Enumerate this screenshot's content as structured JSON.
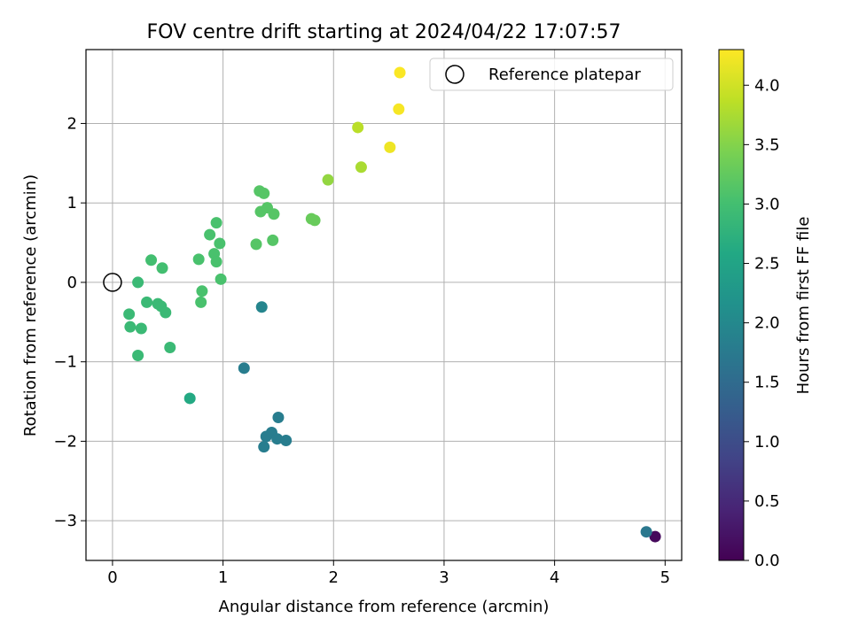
{
  "chart_data": {
    "type": "scatter",
    "title": "FOV centre drift starting at 2024/04/22 17:07:57",
    "xlabel": "Angular distance from reference (arcmin)",
    "ylabel": "Rotation from reference (arcmin)",
    "xlim": [
      -0.24,
      5.15
    ],
    "ylim": [
      -3.5,
      2.93
    ],
    "xticks": [
      0,
      1,
      2,
      3,
      4,
      5
    ],
    "xtick_labels": [
      "0",
      "1",
      "2",
      "3",
      "4",
      "5"
    ],
    "yticks": [
      -3,
      -2,
      -1,
      0,
      1,
      2
    ],
    "ytick_labels": [
      "−3",
      "−2",
      "−1",
      "0",
      "1",
      "2"
    ],
    "grid": true,
    "legend": {
      "placement": "top-right",
      "entries": [
        "Reference platepar"
      ]
    },
    "reference_point": {
      "x": 0,
      "y": 0,
      "label": "Reference platepar"
    },
    "colorbar": {
      "label": "Hours from first FF file",
      "colormap": "viridis",
      "range": [
        0.0,
        4.3
      ],
      "ticks": [
        0.0,
        0.5,
        1.0,
        1.5,
        2.0,
        2.5,
        3.0,
        3.5,
        4.0
      ],
      "tick_labels": [
        "0.0",
        "0.5",
        "1.0",
        "1.5",
        "2.0",
        "2.5",
        "3.0",
        "3.5",
        "4.0"
      ]
    },
    "points": [
      {
        "x": 4.91,
        "y": -3.2,
        "c": 0.1
      },
      {
        "x": 4.83,
        "y": -3.14,
        "c": 1.7
      },
      {
        "x": 1.35,
        "y": -0.31,
        "c": 1.95
      },
      {
        "x": 1.19,
        "y": -1.08,
        "c": 1.8
      },
      {
        "x": 1.5,
        "y": -1.7,
        "c": 1.8
      },
      {
        "x": 1.39,
        "y": -1.94,
        "c": 1.8
      },
      {
        "x": 1.44,
        "y": -1.89,
        "c": 1.8
      },
      {
        "x": 1.49,
        "y": -1.97,
        "c": 1.8
      },
      {
        "x": 1.57,
        "y": -1.99,
        "c": 1.8
      },
      {
        "x": 1.37,
        "y": -2.07,
        "c": 1.8
      },
      {
        "x": 0.7,
        "y": -1.46,
        "c": 2.6
      },
      {
        "x": 0.52,
        "y": -0.82,
        "c": 2.9
      },
      {
        "x": 0.23,
        "y": -0.92,
        "c": 2.9
      },
      {
        "x": 0.15,
        "y": -0.4,
        "c": 2.9
      },
      {
        "x": 0.16,
        "y": -0.56,
        "c": 2.9
      },
      {
        "x": 0.26,
        "y": -0.58,
        "c": 2.9
      },
      {
        "x": 0.31,
        "y": -0.25,
        "c": 2.9
      },
      {
        "x": 0.41,
        "y": -0.27,
        "c": 2.9
      },
      {
        "x": 0.44,
        "y": -0.3,
        "c": 2.9
      },
      {
        "x": 0.48,
        "y": -0.38,
        "c": 2.9
      },
      {
        "x": 0.23,
        "y": 0.0,
        "c": 2.9
      },
      {
        "x": 0.35,
        "y": 0.28,
        "c": 3.0
      },
      {
        "x": 0.45,
        "y": 0.18,
        "c": 3.0
      },
      {
        "x": 0.8,
        "y": -0.25,
        "c": 3.05
      },
      {
        "x": 0.81,
        "y": -0.11,
        "c": 3.05
      },
      {
        "x": 0.78,
        "y": 0.29,
        "c": 3.05
      },
      {
        "x": 0.88,
        "y": 0.6,
        "c": 3.05
      },
      {
        "x": 0.92,
        "y": 0.36,
        "c": 3.05
      },
      {
        "x": 0.94,
        "y": 0.26,
        "c": 3.05
      },
      {
        "x": 0.94,
        "y": 0.75,
        "c": 3.05
      },
      {
        "x": 0.97,
        "y": 0.49,
        "c": 3.05
      },
      {
        "x": 0.98,
        "y": 0.04,
        "c": 3.05
      },
      {
        "x": 1.3,
        "y": 0.48,
        "c": 3.15
      },
      {
        "x": 1.33,
        "y": 1.15,
        "c": 3.15
      },
      {
        "x": 1.37,
        "y": 1.12,
        "c": 3.15
      },
      {
        "x": 1.34,
        "y": 0.89,
        "c": 3.15
      },
      {
        "x": 1.4,
        "y": 0.94,
        "c": 3.15
      },
      {
        "x": 1.46,
        "y": 0.86,
        "c": 3.15
      },
      {
        "x": 1.45,
        "y": 0.53,
        "c": 3.15
      },
      {
        "x": 1.8,
        "y": 0.8,
        "c": 3.3
      },
      {
        "x": 1.83,
        "y": 0.78,
        "c": 3.3
      },
      {
        "x": 1.95,
        "y": 1.29,
        "c": 3.6
      },
      {
        "x": 2.25,
        "y": 1.45,
        "c": 3.75
      },
      {
        "x": 2.22,
        "y": 1.95,
        "c": 3.85
      },
      {
        "x": 2.51,
        "y": 1.7,
        "c": 4.2
      },
      {
        "x": 2.59,
        "y": 2.18,
        "c": 4.25
      },
      {
        "x": 2.6,
        "y": 2.64,
        "c": 4.28
      }
    ]
  }
}
